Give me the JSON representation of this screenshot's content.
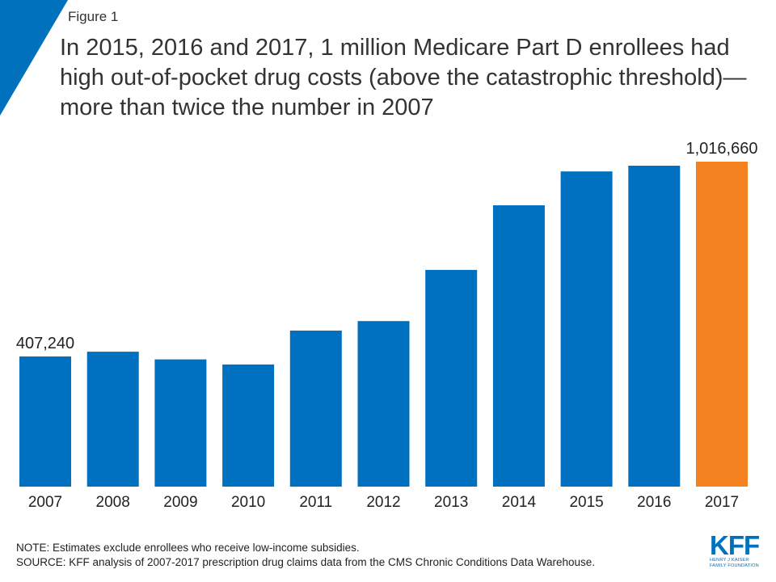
{
  "figure_label": "Figure 1",
  "title": "In 2015, 2016 and 2017, 1 million Medicare Part D enrollees had high out-of-pocket drug costs (above the catastrophic threshold)—more than twice the number in 2007",
  "colors": {
    "bar": "#0070c0",
    "highlight": "#f58220",
    "corner": "#0071bc",
    "brand": "#0071bc"
  },
  "chart_data": {
    "type": "bar",
    "categories": [
      "2007",
      "2008",
      "2009",
      "2010",
      "2011",
      "2012",
      "2013",
      "2014",
      "2015",
      "2016",
      "2017"
    ],
    "values": [
      407240,
      422000,
      398000,
      382000,
      488000,
      518000,
      678000,
      880000,
      986000,
      1004000,
      1016660
    ],
    "highlight_index": 10,
    "data_labels": [
      {
        "index": 0,
        "text": "407,240"
      },
      {
        "index": 10,
        "text": "1,016,660"
      }
    ],
    "ylim": [
      0,
      1100000
    ],
    "grid": false,
    "legend": "none"
  },
  "notes": {
    "note": "NOTE: Estimates exclude enrollees who receive low-income subsidies.",
    "source": "SOURCE: KFF analysis of 2007-2017 prescription drug claims data from the CMS Chronic Conditions Data Warehouse."
  },
  "logo": {
    "mark": "KFF",
    "line1": "HENRY J KAISER",
    "line2": "FAMILY FOUNDATION"
  }
}
